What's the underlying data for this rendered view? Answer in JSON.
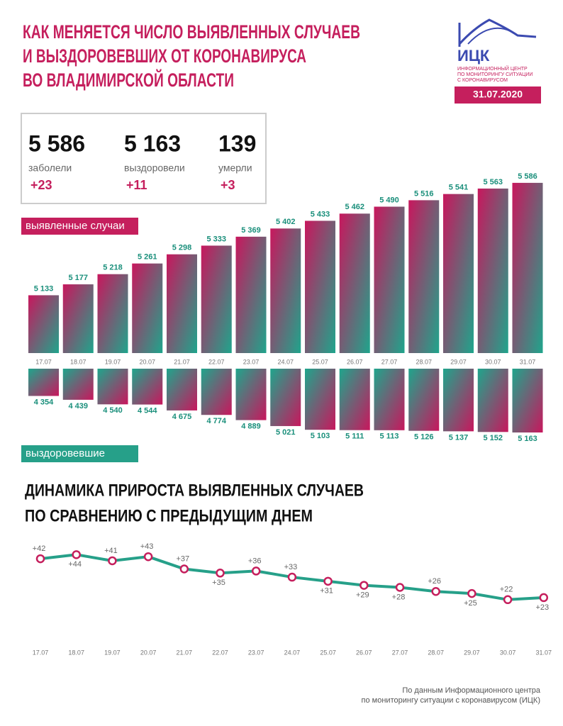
{
  "header": {
    "title_lines": [
      "КАК МЕНЯЕТСЯ ЧИСЛО ВЫЯВЛЕННЫХ СЛУЧАЕВ",
      "И ВЫЗДОРОВЕВШИХ ОТ КОРОНАВИРУСА",
      "ВО ВЛАДИМИРСКОЙ ОБЛАСТИ"
    ],
    "logo": "ИЦК",
    "logo_caption": [
      "ИНФОРМАЦИОННЫЙ ЦЕНТР",
      "ПО МОНИТОРИНГУ СИТУАЦИИ",
      "С КОРОНАВИРУСОМ"
    ],
    "date": "31.07.2020"
  },
  "stats": [
    {
      "value": "5 586",
      "label": "заболели",
      "delta": "+23"
    },
    {
      "value": "5 163",
      "label": "выздоровели",
      "delta": "+11"
    },
    {
      "value": "139",
      "label": "умерли",
      "delta": "+3"
    }
  ],
  "chart_data": [
    {
      "type": "bar",
      "direction": "up",
      "label": "выявленные случаи",
      "categories": [
        "17.07",
        "18.07",
        "19.07",
        "20.07",
        "21.07",
        "22.07",
        "23.07",
        "24.07",
        "25.07",
        "26.07",
        "27.07",
        "28.07",
        "29.07",
        "30.07",
        "31.07"
      ],
      "values": [
        5133,
        5177,
        5218,
        5261,
        5298,
        5333,
        5369,
        5402,
        5433,
        5462,
        5490,
        5516,
        5541,
        5563,
        5586
      ],
      "value_labels": [
        "5 133",
        "5 177",
        "5 218",
        "5 261",
        "5 298",
        "5 333",
        "5 369",
        "5 402",
        "5 433",
        "5 462",
        "5 490",
        "5 516",
        "5 541",
        "5 563",
        "5 586"
      ],
      "ylim": [
        4900,
        5600
      ],
      "colors": [
        "#c8175d",
        "#1fa58c"
      ],
      "label_color": "#1a8f7b",
      "tab_color": "#c51f5d"
    },
    {
      "type": "bar",
      "direction": "down",
      "label": "выздоровевшие",
      "values": [
        4354,
        4439,
        4540,
        4544,
        4675,
        4774,
        4889,
        5021,
        5103,
        5111,
        5113,
        5126,
        5137,
        5152,
        5163
      ],
      "value_labels": [
        "4 354",
        "4 439",
        "4 540",
        "4 544",
        "4 675",
        "4 774",
        "4 889",
        "5 021",
        "5 103",
        "5 111",
        "5 113",
        "5 126",
        "5 137",
        "5 152",
        "5 163"
      ],
      "ylim": [
        3750,
        5200
      ],
      "colors": [
        "#1fa58c",
        "#c8175d"
      ],
      "label_color": "#1a8f7b",
      "tab_color": "#26a089"
    },
    {
      "type": "line",
      "title": [
        "ДИНАМИКА ПРИРОСТА ВЫЯВЛЕННЫХ СЛУЧАЕВ",
        "ПО СРАВНЕНИЮ С ПРЕДЫДУЩИМ ДНЕМ"
      ],
      "categories": [
        "17.07",
        "18.07",
        "19.07",
        "20.07",
        "21.07",
        "22.07",
        "23.07",
        "24.07",
        "25.07",
        "26.07",
        "27.07",
        "28.07",
        "29.07",
        "30.07",
        "31.07"
      ],
      "values": [
        42,
        44,
        41,
        43,
        37,
        35,
        36,
        33,
        31,
        29,
        28,
        26,
        25,
        22,
        23
      ],
      "value_labels": [
        "+42",
        "+44",
        "+41",
        "+43",
        "+37",
        "+35",
        "+36",
        "+33",
        "+31",
        "+29",
        "+28",
        "+26",
        "+25",
        "+22",
        "+23"
      ],
      "ylim": [
        15,
        50
      ],
      "color": "#26a089",
      "marker_color": "#c51f5d"
    }
  ],
  "footer": [
    "По данным Информационного центра",
    "по мониторингу ситуации с коронавирусом (ИЦК)"
  ]
}
